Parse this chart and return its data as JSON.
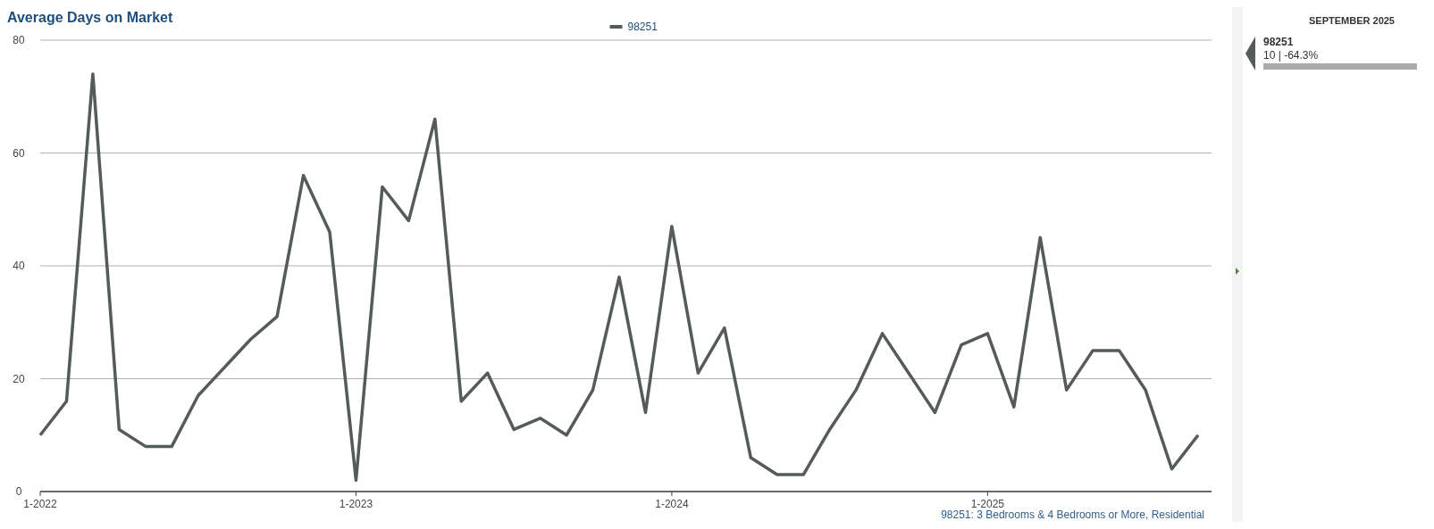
{
  "chart_data": {
    "type": "line",
    "title": "Average Days on Market",
    "categories": [
      "1-2022",
      null,
      null,
      null,
      null,
      null,
      null,
      null,
      null,
      null,
      null,
      null,
      "1-2023",
      null,
      null,
      null,
      null,
      null,
      null,
      null,
      null,
      null,
      null,
      null,
      "1-2024",
      null,
      null,
      null,
      null,
      null,
      null,
      null,
      null,
      null,
      null,
      null,
      "1-2025",
      null,
      null,
      null,
      null,
      null,
      null,
      null,
      null
    ],
    "series": [
      {
        "name": "98251",
        "color": "#555b58",
        "values": [
          10,
          16,
          74,
          11,
          8,
          8,
          17,
          22,
          27,
          31,
          56,
          46,
          2,
          54,
          48,
          66,
          16,
          21,
          11,
          13,
          10,
          18,
          38,
          14,
          47,
          21,
          29,
          6,
          3,
          3,
          11,
          18,
          28,
          21,
          14,
          26,
          28,
          15,
          45,
          18,
          25,
          25,
          18,
          4,
          10
        ]
      }
    ],
    "ylim": [
      0,
      80
    ],
    "yticks": [
      0,
      20,
      40,
      60,
      80
    ],
    "grid": "y",
    "legend": "top",
    "marker": "none",
    "line_style": "solid",
    "annotations": [
      "SEPTEMBER 2025",
      "98251",
      "10 | -64.3%",
      "98251: 3 Bedrooms & 4 Bedrooms or More, Residential"
    ]
  }
}
